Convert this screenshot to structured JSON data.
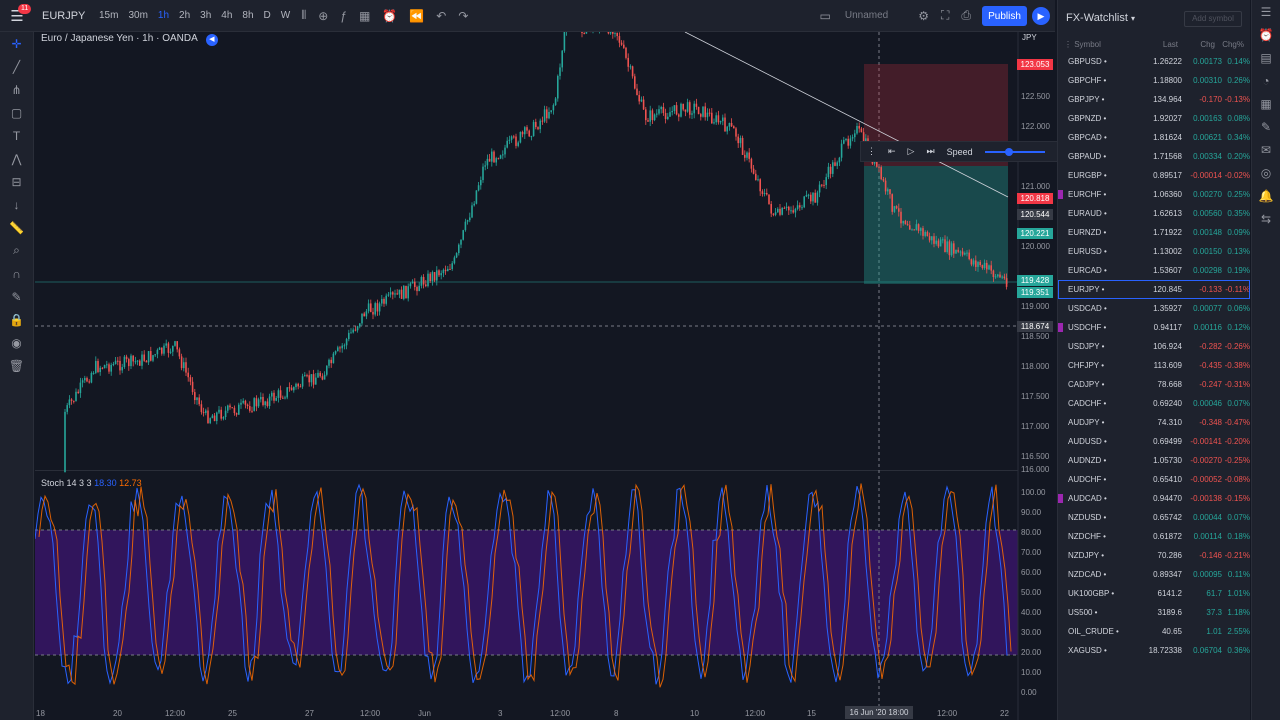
{
  "topbar": {
    "notif": "11",
    "symbol": "EURJPY",
    "intervals": [
      "15m",
      "30m",
      "1h",
      "2h",
      "3h",
      "4h",
      "8h",
      "D",
      "W"
    ],
    "active_interval": "1h",
    "layout": "Unnamed",
    "publish": "Publish"
  },
  "chart": {
    "title": "Euro / Japanese Yen · 1h · OANDA",
    "currency": "JPY",
    "stoch_label": "Stoch 14 3 3",
    "stoch_k": "18.30",
    "stoch_d": "12.73",
    "price_ticks": [
      "122.500",
      "122.000",
      "121.000",
      "120.000",
      "119.000",
      "118.500",
      "118.000",
      "117.500",
      "117.000",
      "116.500",
      "116.000"
    ],
    "stoch_ticks": [
      "100.00",
      "90.00",
      "80.00",
      "70.00",
      "60.00",
      "50.00",
      "40.00",
      "30.00",
      "20.00",
      "10.00",
      "0.00"
    ],
    "price_labels": [
      {
        "v": "123.053",
        "c": "#f23645"
      },
      {
        "v": "120.818",
        "c": "#f23645"
      },
      {
        "v": "120.544",
        "c": "#363a45"
      },
      {
        "v": "120.221",
        "c": "#26a69a"
      },
      {
        "v": "119.428",
        "c": "#26a69a"
      },
      {
        "v": "119.351",
        "c": "#26a69a"
      },
      {
        "v": "118.674",
        "c": "#363a45"
      }
    ],
    "x_ticks": [
      "18",
      "20",
      "12:00",
      "25",
      "27",
      "12:00",
      "Jun",
      "3",
      "12:00",
      "8",
      "10",
      "12:00",
      "15",
      "18:00",
      "12:00",
      "22"
    ],
    "crosshair_time": "16 Jun '20  18:00",
    "replay_speed": "Speed"
  },
  "watchlist": {
    "title": "FX-Watchlist",
    "add": "Add symbol",
    "cols": [
      "Symbol",
      "Last",
      "Chg",
      "Chg%"
    ],
    "rows": [
      [
        "GBPUSD",
        "1.26222",
        "0.00173",
        "0.14%",
        1,
        0
      ],
      [
        "GBPCHF",
        "1.18800",
        "0.00310",
        "0.26%",
        1,
        0
      ],
      [
        "GBPJPY",
        "134.964",
        "-0.170",
        "-0.13%",
        0,
        0
      ],
      [
        "GBPNZD",
        "1.92027",
        "0.00163",
        "0.08%",
        1,
        0
      ],
      [
        "GBPCAD",
        "1.81624",
        "0.00621",
        "0.34%",
        1,
        0
      ],
      [
        "GBPAUD",
        "1.71568",
        "0.00334",
        "0.20%",
        1,
        0
      ],
      [
        "EURGBP",
        "0.89517",
        "-0.00014",
        "-0.02%",
        0,
        0
      ],
      [
        "EURCHF",
        "1.06360",
        "0.00270",
        "0.25%",
        1,
        1
      ],
      [
        "EURAUD",
        "1.62613",
        "0.00560",
        "0.35%",
        1,
        0
      ],
      [
        "EURNZD",
        "1.71922",
        "0.00148",
        "0.09%",
        1,
        0
      ],
      [
        "EURUSD",
        "1.13002",
        "0.00150",
        "0.13%",
        1,
        0
      ],
      [
        "EURCAD",
        "1.53607",
        "0.00298",
        "0.19%",
        1,
        0
      ],
      [
        "EURJPY",
        "120.845",
        "-0.133",
        "-0.11%",
        0,
        0
      ],
      [
        "USDCAD",
        "1.35927",
        "0.00077",
        "0.06%",
        1,
        0
      ],
      [
        "USDCHF",
        "0.94117",
        "0.00116",
        "0.12%",
        1,
        1
      ],
      [
        "USDJPY",
        "106.924",
        "-0.282",
        "-0.26%",
        0,
        0
      ],
      [
        "CHFJPY",
        "113.609",
        "-0.435",
        "-0.38%",
        0,
        0
      ],
      [
        "CADJPY",
        "78.668",
        "-0.247",
        "-0.31%",
        0,
        0
      ],
      [
        "CADCHF",
        "0.69240",
        "0.00046",
        "0.07%",
        1,
        0
      ],
      [
        "AUDJPY",
        "74.310",
        "-0.348",
        "-0.47%",
        0,
        0
      ],
      [
        "AUDUSD",
        "0.69499",
        "-0.00141",
        "-0.20%",
        0,
        0
      ],
      [
        "AUDNZD",
        "1.05730",
        "-0.00270",
        "-0.25%",
        0,
        0
      ],
      [
        "AUDCHF",
        "0.65410",
        "-0.00052",
        "-0.08%",
        0,
        0
      ],
      [
        "AUDCAD",
        "0.94470",
        "-0.00138",
        "-0.15%",
        0,
        1
      ],
      [
        "NZDUSD",
        "0.65742",
        "0.00044",
        "0.07%",
        1,
        0
      ],
      [
        "NZDCHF",
        "0.61872",
        "0.00114",
        "0.18%",
        1,
        0
      ],
      [
        "NZDJPY",
        "70.286",
        "-0.146",
        "-0.21%",
        0,
        0
      ],
      [
        "NZDCAD",
        "0.89347",
        "0.00095",
        "0.11%",
        1,
        0
      ],
      [
        "UK100GBP",
        "6141.2",
        "61.7",
        "1.01%",
        1,
        0
      ],
      [
        "US500",
        "3189.6",
        "37.3",
        "1.18%",
        1,
        0
      ],
      [
        "OIL_CRUDE",
        "40.65",
        "1.01",
        "2.55%",
        1,
        0
      ],
      [
        "XAGUSD",
        "18.72338",
        "0.06704",
        "0.36%",
        1,
        0
      ]
    ]
  }
}
